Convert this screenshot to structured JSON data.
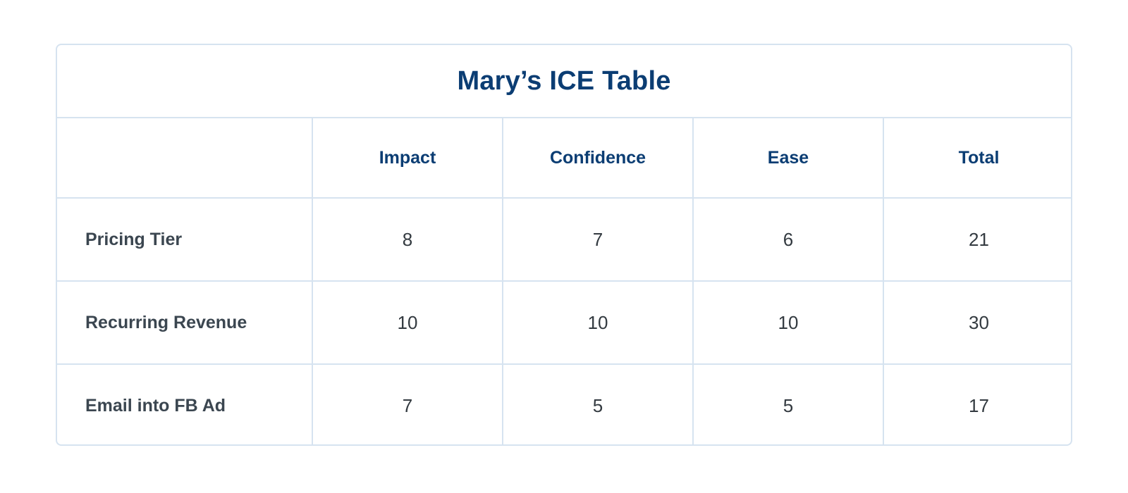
{
  "table": {
    "title": "Mary’s ICE Table",
    "headers": [
      "",
      "Impact",
      "Confidence",
      "Ease",
      "Total"
    ],
    "rows": [
      {
        "label": "Pricing Tier",
        "impact": "8",
        "confidence": "7",
        "ease": "6",
        "total": "21"
      },
      {
        "label": "Recurring Revenue",
        "impact": "10",
        "confidence": "10",
        "ease": "10",
        "total": "30"
      },
      {
        "label": "Email into FB Ad",
        "impact": "7",
        "confidence": "5",
        "ease": "5",
        "total": "17"
      }
    ]
  },
  "colors": {
    "title": "#0b3d73",
    "header": "#0b3d73",
    "row_label": "#3b4650",
    "border": "#d6e3f0"
  }
}
